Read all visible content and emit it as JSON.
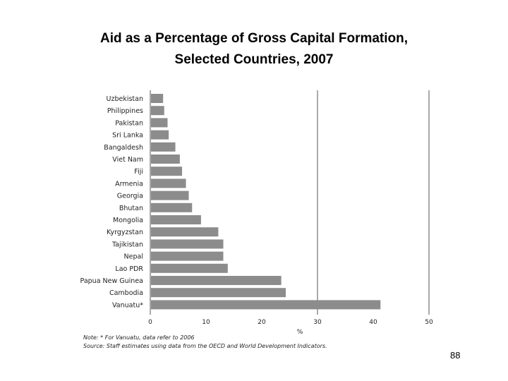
{
  "slide": {
    "title_line1": "Aid as a Percentage of Gross Capital Formation,",
    "title_line2": "Selected Countries, 2007",
    "note": "Note: * For Vanuatu, data refer to 2006",
    "source": "Source: Staff estimates using data from the OECD and World Development Indicators.",
    "page_number": "88"
  },
  "chart_data": {
    "type": "bar",
    "orientation": "horizontal",
    "title": "",
    "xlabel": "%",
    "ylabel": "",
    "xlim": [
      0,
      50
    ],
    "xticks": [
      "0",
      "10",
      "20",
      "30",
      "40",
      "50"
    ],
    "grid": "vertical gridlines at 30 and 50",
    "bar_color": "#8c8c8c",
    "categories": [
      "Uzbekistan",
      "Philippines",
      "Pakistan",
      "Sri Lanka",
      "Bangaldesh",
      "Viet Nam",
      "Fiji",
      "Armenia",
      "Georgia",
      "Bhutan",
      "Mongolia",
      "Kyrgyzstan",
      "Tajikistan",
      "Nepal",
      "Lao PDR",
      "Papua New Guinea",
      "Cambodia",
      "Vanuatu*"
    ],
    "values": [
      2.3,
      2.5,
      3.1,
      3.3,
      4.5,
      5.3,
      5.7,
      6.4,
      6.9,
      7.5,
      9.1,
      12.2,
      13.1,
      13.1,
      13.9,
      23.5,
      24.3,
      41.3
    ]
  }
}
